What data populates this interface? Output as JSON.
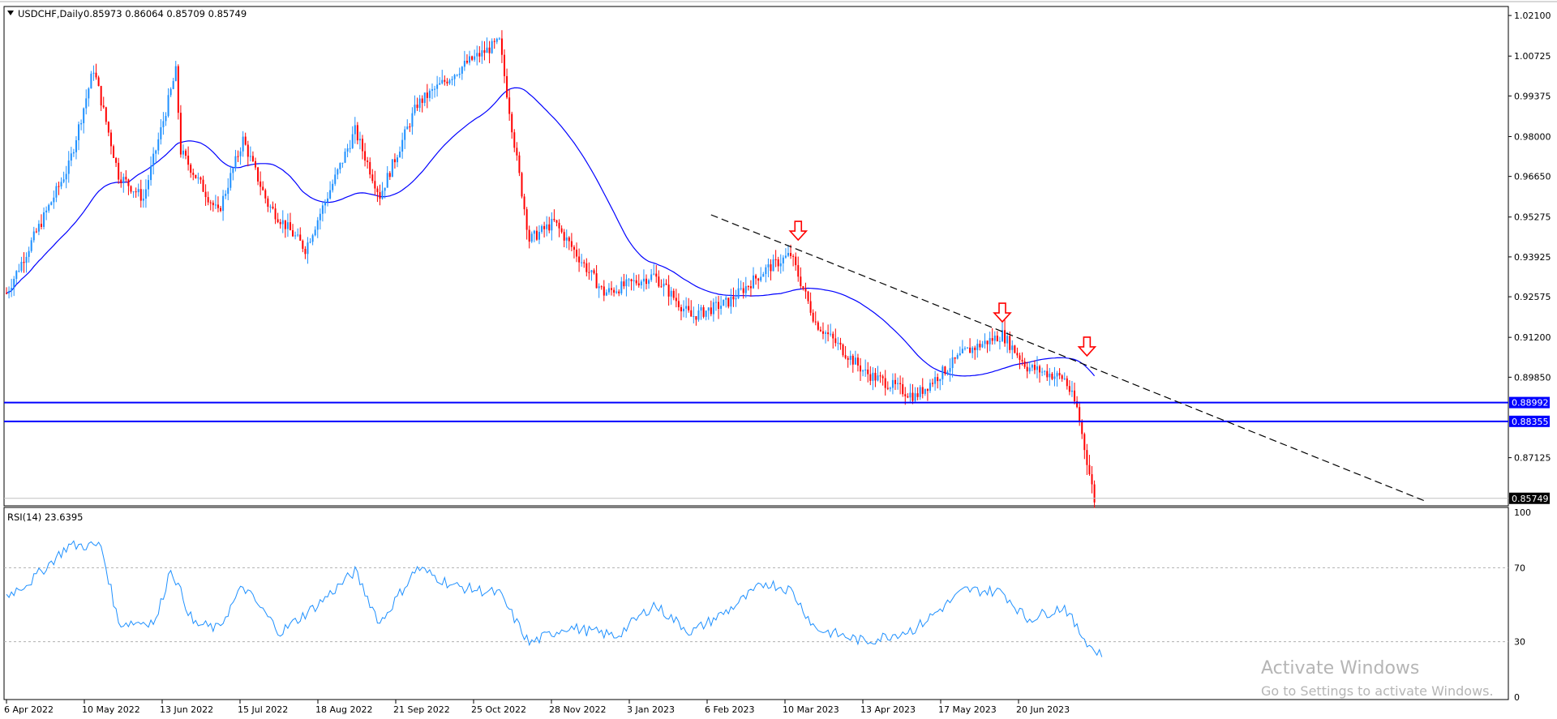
{
  "header": {
    "symbol_line": "USDCHF,Daily",
    "ohlc": "0.85973 0.86064 0.85709 0.85749"
  },
  "rsi_header": "RSI(14) 23.6395",
  "watermark": {
    "line1": "Activate Windows",
    "line2": "Go to Settings to activate Windows."
  },
  "colors": {
    "bull": "#1e90ff",
    "bear": "#ff0000",
    "ma": "#0000ff",
    "rsi": "#1e90ff",
    "hline": "#0000ff",
    "trendline": "#000000",
    "arrow": "#ff0000",
    "watermark": "#aaaaaa"
  },
  "chart_data": [
    {
      "type": "candlestick",
      "symbol": "USDCHF",
      "timeframe": "Daily",
      "price_axis": {
        "ticks": [
          "1.02100",
          "1.00725",
          "0.99375",
          "0.98000",
          "0.96650",
          "0.95275",
          "0.93925",
          "0.92575",
          "0.91200",
          "0.89850",
          "0.87125"
        ],
        "range": [
          0.8555,
          1.0235
        ]
      },
      "date_labels": [
        "6 Apr 2022",
        "10 May 2022",
        "13 Jun 2022",
        "15 Jul 2022",
        "18 Aug 2022",
        "21 Sep 2022",
        "25 Oct 2022",
        "28 Nov 2022",
        "3 Jan 2023",
        "6 Feb 2023",
        "10 Mar 2023",
        "13 Apr 2023",
        "17 May 2023",
        "20 Jun 2023"
      ],
      "price_path_keypoints": [
        [
          0,
          0.927
        ],
        [
          25,
          0.97
        ],
        [
          35,
          1.003
        ],
        [
          40,
          0.985
        ],
        [
          45,
          0.967
        ],
        [
          55,
          0.959
        ],
        [
          68,
          1.002
        ],
        [
          70,
          0.975
        ],
        [
          85,
          0.954
        ],
        [
          95,
          0.979
        ],
        [
          105,
          0.957
        ],
        [
          120,
          0.942
        ],
        [
          140,
          0.982
        ],
        [
          150,
          0.96
        ],
        [
          165,
          0.991
        ],
        [
          185,
          1.005
        ],
        [
          198,
          1.012
        ],
        [
          205,
          0.972
        ],
        [
          210,
          0.945
        ],
        [
          220,
          0.951
        ],
        [
          240,
          0.927
        ],
        [
          260,
          0.933
        ],
        [
          275,
          0.919
        ],
        [
          290,
          0.924
        ],
        [
          305,
          0.935
        ],
        [
          315,
          0.94
        ],
        [
          325,
          0.917
        ],
        [
          345,
          0.9
        ],
        [
          365,
          0.892
        ],
        [
          385,
          0.907
        ],
        [
          400,
          0.913
        ],
        [
          410,
          0.902
        ],
        [
          425,
          0.898
        ],
        [
          430,
          0.888
        ],
        [
          437,
          0.857
        ]
      ],
      "last_price": "0.85749",
      "horizontal_lines": [
        {
          "price": 0.88992,
          "label": "0.88992"
        },
        {
          "price": 0.88355,
          "label": "0.88355"
        }
      ],
      "trendline": {
        "from": [
          283,
          0.9535
        ],
        "to": [
          570,
          0.8565
        ]
      },
      "arrow_marks_on_bars": [
        318,
        400,
        434
      ]
    },
    {
      "type": "line",
      "name": "RSI(14)",
      "last_value": 23.6395,
      "y_range": [
        0,
        100
      ],
      "y_ticks": [
        "100",
        "70",
        "30",
        "0"
      ],
      "levels": [
        70,
        30
      ],
      "keypoints": [
        [
          0,
          55
        ],
        [
          10,
          63
        ],
        [
          25,
          82
        ],
        [
          38,
          82
        ],
        [
          45,
          40
        ],
        [
          60,
          41
        ],
        [
          66,
          70
        ],
        [
          75,
          40
        ],
        [
          85,
          37
        ],
        [
          95,
          60
        ],
        [
          110,
          35
        ],
        [
          125,
          50
        ],
        [
          140,
          68
        ],
        [
          150,
          40
        ],
        [
          165,
          70
        ],
        [
          180,
          60
        ],
        [
          198,
          56
        ],
        [
          210,
          29
        ],
        [
          225,
          38
        ],
        [
          245,
          33
        ],
        [
          260,
          50
        ],
        [
          275,
          35
        ],
        [
          290,
          47
        ],
        [
          305,
          62
        ],
        [
          315,
          58
        ],
        [
          325,
          37
        ],
        [
          345,
          30
        ],
        [
          365,
          37
        ],
        [
          385,
          58
        ],
        [
          400,
          57
        ],
        [
          410,
          42
        ],
        [
          425,
          49
        ],
        [
          430,
          37
        ],
        [
          437,
          25
        ],
        [
          440,
          24
        ]
      ]
    }
  ]
}
